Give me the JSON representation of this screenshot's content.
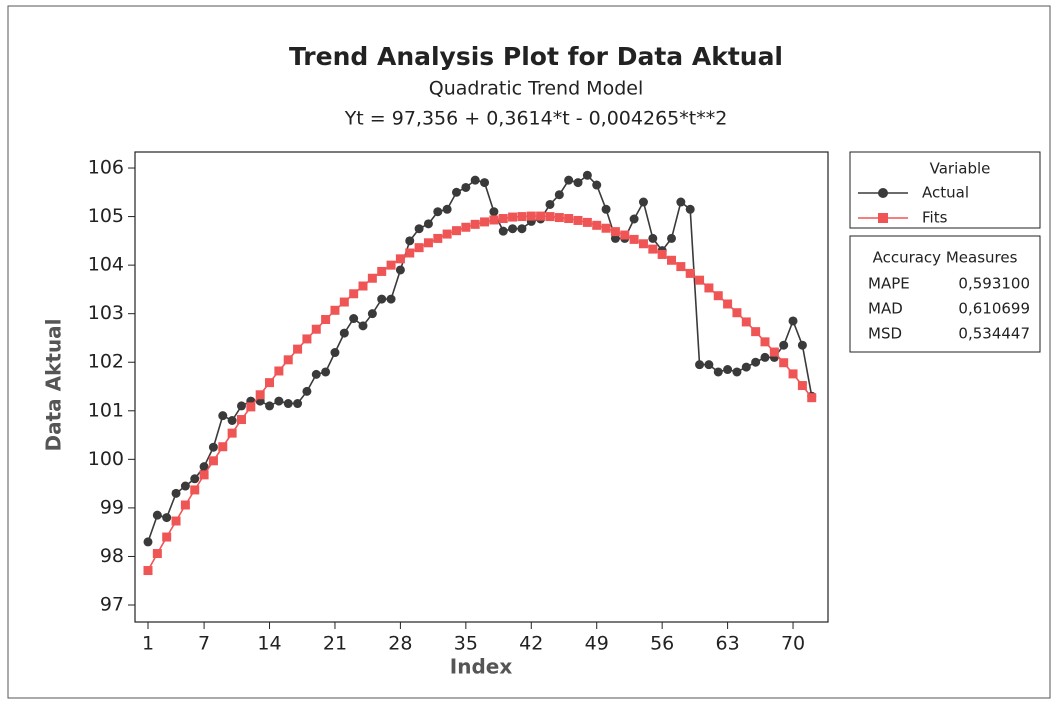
{
  "chart_data": {
    "type": "line",
    "title": "Trend Analysis Plot for Data Aktual",
    "subtitle": "Quadratic Trend Model",
    "equation": "Yt = 97,356 + 0,3614*t - 0,004265*t**2",
    "x_label": "Index",
    "y_label": "Data Aktual",
    "x": [
      1,
      2,
      3,
      4,
      5,
      6,
      7,
      8,
      9,
      10,
      11,
      12,
      13,
      14,
      15,
      16,
      17,
      18,
      19,
      20,
      21,
      22,
      23,
      24,
      25,
      26,
      27,
      28,
      29,
      30,
      31,
      32,
      33,
      34,
      35,
      36,
      37,
      38,
      39,
      40,
      41,
      42,
      43,
      44,
      45,
      46,
      47,
      48,
      49,
      50,
      51,
      52,
      53,
      54,
      55,
      56,
      57,
      58,
      59,
      60,
      61,
      62,
      63,
      64,
      65,
      66,
      67,
      68,
      69,
      70,
      71,
      72
    ],
    "xlim": [
      -0.39,
      73.74
    ],
    "xticks": [
      1,
      7,
      14,
      21,
      28,
      35,
      42,
      49,
      56,
      63,
      70
    ],
    "ylim": [
      96.65,
      106.33
    ],
    "yticks": [
      97,
      98,
      99,
      100,
      101,
      102,
      103,
      104,
      105,
      106
    ],
    "legend_title": "Variable",
    "legend_position": "right",
    "series": [
      {
        "name": "Actual",
        "color": "#3a3a3a",
        "marker": "circle",
        "values": [
          98.3,
          98.85,
          98.8,
          99.3,
          99.45,
          99.6,
          99.85,
          100.25,
          100.9,
          100.8,
          101.1,
          101.2,
          101.2,
          101.1,
          101.2,
          101.15,
          101.15,
          101.4,
          101.75,
          101.8,
          102.2,
          102.6,
          102.9,
          102.75,
          103.0,
          103.3,
          103.3,
          103.9,
          104.5,
          104.75,
          104.85,
          105.1,
          105.15,
          105.5,
          105.6,
          105.75,
          105.7,
          105.1,
          104.7,
          104.75,
          104.75,
          104.9,
          104.95,
          105.25,
          105.45,
          105.75,
          105.7,
          105.85,
          105.65,
          105.15,
          104.55,
          104.55,
          104.95,
          105.3,
          104.55,
          104.3,
          104.55,
          105.3,
          105.15,
          101.95,
          101.95,
          101.8,
          101.85,
          101.8,
          101.9,
          102.0,
          102.1,
          102.1,
          102.35,
          102.85,
          102.35,
          101.3
        ]
      },
      {
        "name": "Fits",
        "color": "#f05555",
        "marker": "square",
        "values": [
          97.71,
          98.06,
          98.4,
          98.73,
          99.06,
          99.37,
          99.68,
          99.97,
          100.26,
          100.54,
          100.82,
          101.08,
          101.33,
          101.58,
          101.82,
          102.05,
          102.27,
          102.48,
          102.68,
          102.88,
          103.07,
          103.24,
          103.41,
          103.57,
          103.73,
          103.87,
          104.0,
          104.13,
          104.25,
          104.36,
          104.46,
          104.55,
          104.64,
          104.71,
          104.78,
          104.84,
          104.89,
          104.93,
          104.96,
          104.99,
          105.0,
          105.01,
          105.01,
          105.0,
          104.98,
          104.96,
          104.92,
          104.88,
          104.82,
          104.76,
          104.69,
          104.62,
          104.53,
          104.44,
          104.33,
          104.22,
          104.1,
          103.97,
          103.83,
          103.69,
          103.53,
          103.37,
          103.2,
          103.02,
          102.83,
          102.63,
          102.42,
          102.21,
          101.99,
          101.76,
          101.52,
          101.27
        ]
      }
    ],
    "accuracy": {
      "title": "Accuracy Measures",
      "rows": [
        [
          "MAPE",
          "0,593100"
        ],
        [
          "MAD",
          "0,610699"
        ],
        [
          "MSD",
          "0,534447"
        ]
      ]
    }
  }
}
